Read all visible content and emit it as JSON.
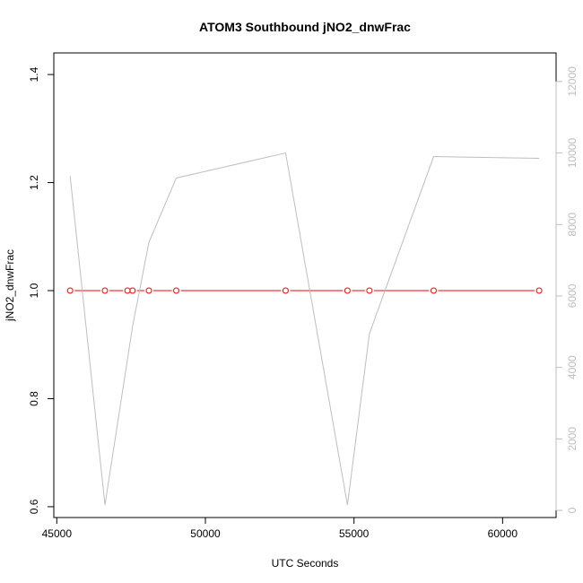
{
  "chart_data": {
    "type": "line",
    "title": "ATOM3 Southbound jNO2_dnwFrac",
    "xlabel": "UTC Seconds",
    "ylabel": "jNO2_dnwFrac",
    "xlim": [
      44900,
      61800
    ],
    "ylim": [
      0.58,
      1.44
    ],
    "y2lim": [
      -200,
      12800
    ],
    "x_ticks": [
      45000,
      50000,
      55000,
      60000
    ],
    "x_tick_labels": [
      "45000",
      "50000",
      "55000",
      "60000"
    ],
    "y_ticks": [
      0.6,
      0.8,
      1.0,
      1.2,
      1.4
    ],
    "y_tick_labels": [
      "0.6",
      "0.8",
      "1.0",
      "1.2",
      "1.4"
    ],
    "y2_ticks": [
      0,
      2000,
      4000,
      6000,
      8000,
      10000,
      12000
    ],
    "y2_tick_labels": [
      "0",
      "2000",
      "4000",
      "6000",
      "8000",
      "10000",
      "12000"
    ],
    "grid": false,
    "series": [
      {
        "axis": "left",
        "color": "#ff0000",
        "marker": "open-circle",
        "x": [
          45450,
          46620,
          47380,
          47550,
          48100,
          49020,
          52700,
          54780,
          55520,
          57680,
          61230
        ],
        "y": [
          1.0,
          1.0,
          1.0,
          1.0,
          1.0,
          1.0,
          1.0,
          1.0,
          1.0,
          1.0,
          1.0
        ]
      },
      {
        "axis": "right",
        "color": "#bebebe",
        "marker": "none",
        "x": [
          45450,
          46620,
          47550,
          48100,
          49020,
          52700,
          54780,
          55520,
          57680,
          61230
        ],
        "y": [
          9350,
          150,
          5150,
          7500,
          9300,
          10000,
          150,
          4950,
          9900,
          9850
        ]
      }
    ]
  }
}
